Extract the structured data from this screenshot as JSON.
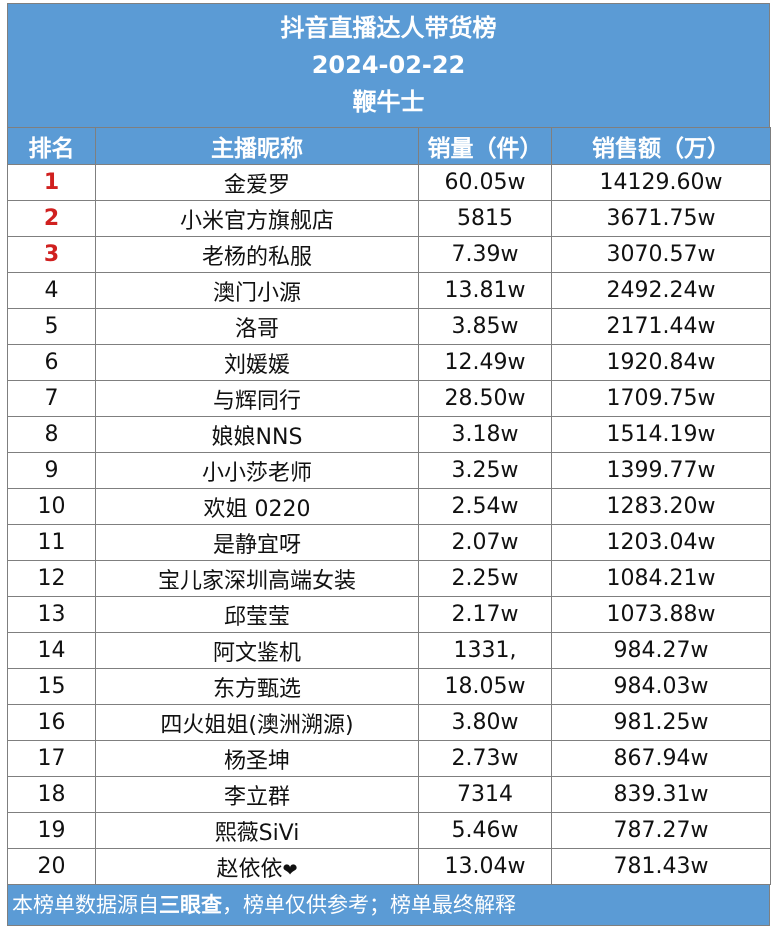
{
  "header": {
    "title": "抖音直播达人带货榜",
    "date": "2024-02-22",
    "author": "鞭牛士"
  },
  "columns": {
    "rank": "排名",
    "name": "主播昵称",
    "volume": "销量（件）",
    "sales": "销售额（万）"
  },
  "rows": [
    {
      "rank": "1",
      "name": "金爱罗",
      "volume": "60.05w",
      "sales": "14129.60w"
    },
    {
      "rank": "2",
      "name": "小米官方旗舰店",
      "volume": "5815",
      "sales": "3671.75w"
    },
    {
      "rank": "3",
      "name": "老杨的私服",
      "volume": "7.39w",
      "sales": "3070.57w"
    },
    {
      "rank": "4",
      "name": "澳门小源",
      "volume": "13.81w",
      "sales": "2492.24w"
    },
    {
      "rank": "5",
      "name": "洛哥",
      "volume": "3.85w",
      "sales": "2171.44w"
    },
    {
      "rank": "6",
      "name": "刘媛媛",
      "volume": "12.49w",
      "sales": "1920.84w"
    },
    {
      "rank": "7",
      "name": "与辉同行",
      "volume": "28.50w",
      "sales": "1709.75w"
    },
    {
      "rank": "8",
      "name": "娘娘NNS",
      "volume": "3.18w",
      "sales": "1514.19w"
    },
    {
      "rank": "9",
      "name": "小小莎老师",
      "volume": "3.25w",
      "sales": "1399.77w"
    },
    {
      "rank": "10",
      "name": "欢姐 0220",
      "volume": "2.54w",
      "sales": "1283.20w"
    },
    {
      "rank": "11",
      "name": "是静宜呀",
      "volume": "2.07w",
      "sales": "1203.04w"
    },
    {
      "rank": "12",
      "name": "宝儿家深圳高端女装",
      "volume": "2.25w",
      "sales": "1084.21w"
    },
    {
      "rank": "13",
      "name": "邱莹莹",
      "volume": "2.17w",
      "sales": "1073.88w"
    },
    {
      "rank": "14",
      "name": "阿文鉴机",
      "volume": "1331,",
      "sales": "984.27w"
    },
    {
      "rank": "15",
      "name": "东方甄选",
      "volume": "18.05w",
      "sales": "984.03w"
    },
    {
      "rank": "16",
      "name": "四火姐姐(澳洲溯源)",
      "volume": "3.80w",
      "sales": "981.25w"
    },
    {
      "rank": "17",
      "name": "杨圣坤",
      "volume": "2.73w",
      "sales": "867.94w"
    },
    {
      "rank": "18",
      "name": "李立群",
      "volume": "7314",
      "sales": "839.31w"
    },
    {
      "rank": "19",
      "name": "熙薇SiVi",
      "volume": "5.46w",
      "sales": "787.27w"
    },
    {
      "rank": "20",
      "name": "赵依依",
      "name_suffix": "❤",
      "volume": "13.04w",
      "sales": "781.43w"
    }
  ],
  "footer": {
    "prefix": "本榜单数据源自",
    "source": "三眼查",
    "suffix": "，榜单仅供参考；榜单最终解释"
  },
  "colors": {
    "header_bg": "#5b9bd5",
    "top_rank": "#d0201f"
  }
}
